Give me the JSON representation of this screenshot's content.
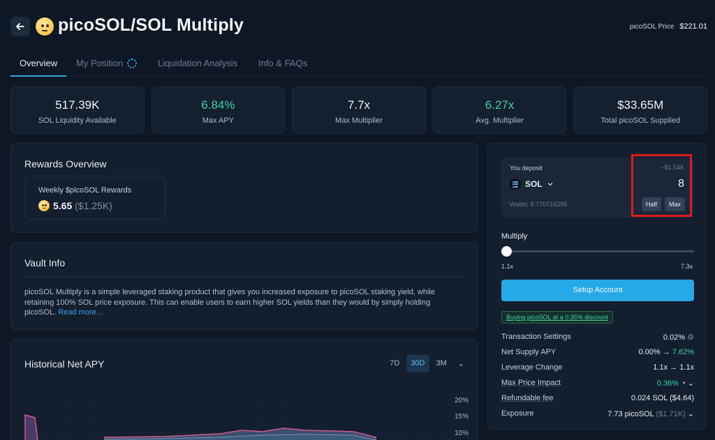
{
  "header": {
    "title": "picoSOL/SOL Multiply",
    "price_label": "picoSOL Price",
    "price_value": "$221.01"
  },
  "tabs": [
    {
      "label": "Overview"
    },
    {
      "label": "My Position"
    },
    {
      "label": "Liquidation Analysis"
    },
    {
      "label": "Info & FAQs"
    }
  ],
  "stats": [
    {
      "value": "517.39K",
      "label": "SOL Liquidity Available"
    },
    {
      "value": "6.84%",
      "label": "Max APY"
    },
    {
      "value": "7.7x",
      "label": "Max Multiplier"
    },
    {
      "value": "6.27x",
      "label": "Avg. Multiplier"
    },
    {
      "value": "$33.65M",
      "label": "Total picoSOL Supplied"
    }
  ],
  "rewards": {
    "title": "Rewards Overview",
    "box_label": "Weekly $picoSOL Rewards",
    "amount": "5.65",
    "usd": "($1.25K)"
  },
  "vault": {
    "title": "Vault Info",
    "description": "picoSOL Multiply is a simple leveraged staking product that gives you increased exposure to picoSOL staking yield, while retaining 100% SOL price exposure. This can enable users to earn higher SOL yields than they would by simply holding picoSOL.",
    "read_more": "Read more..."
  },
  "historical": {
    "title": "Historical Net APY",
    "ranges": [
      "7D",
      "30D",
      "3M"
    ],
    "selected_range": "30D",
    "y_ticks": [
      "20%",
      "15%",
      "10%"
    ]
  },
  "deposit": {
    "label": "You deposit",
    "usd_estimate": "~$1.54K",
    "token": "SOL",
    "amount": "8",
    "wallet": "Wallet: 8.770716295",
    "half_label": "Half",
    "max_label": "Max"
  },
  "multiply": {
    "label": "Multiply",
    "min": "1.1x",
    "max": "7.3x",
    "level": 0
  },
  "setup_button": "Setup Account",
  "discount_badge": "Buying picoSOL at a 0.35% discount",
  "details": {
    "transaction_settings": {
      "label": "Transaction Settings",
      "value": "0.02%"
    },
    "net_supply_apy": {
      "label": "Net Supply APY",
      "from": "0.00%",
      "arrow": "→",
      "to": "7.62%"
    },
    "leverage_change": {
      "label": "Leverage Change",
      "from": "1.1x",
      "arrow": "→",
      "to": "1.1x"
    },
    "max_price_impact": {
      "label": "Max Price Impact",
      "value": "0.36%"
    },
    "refundable_fee": {
      "label": "Refundable fee",
      "value": "0.024 SOL ($4.64)"
    },
    "exposure": {
      "label": "Exposure",
      "value": "7.73 picoSOL",
      "usd": "($1.71K)"
    }
  }
}
